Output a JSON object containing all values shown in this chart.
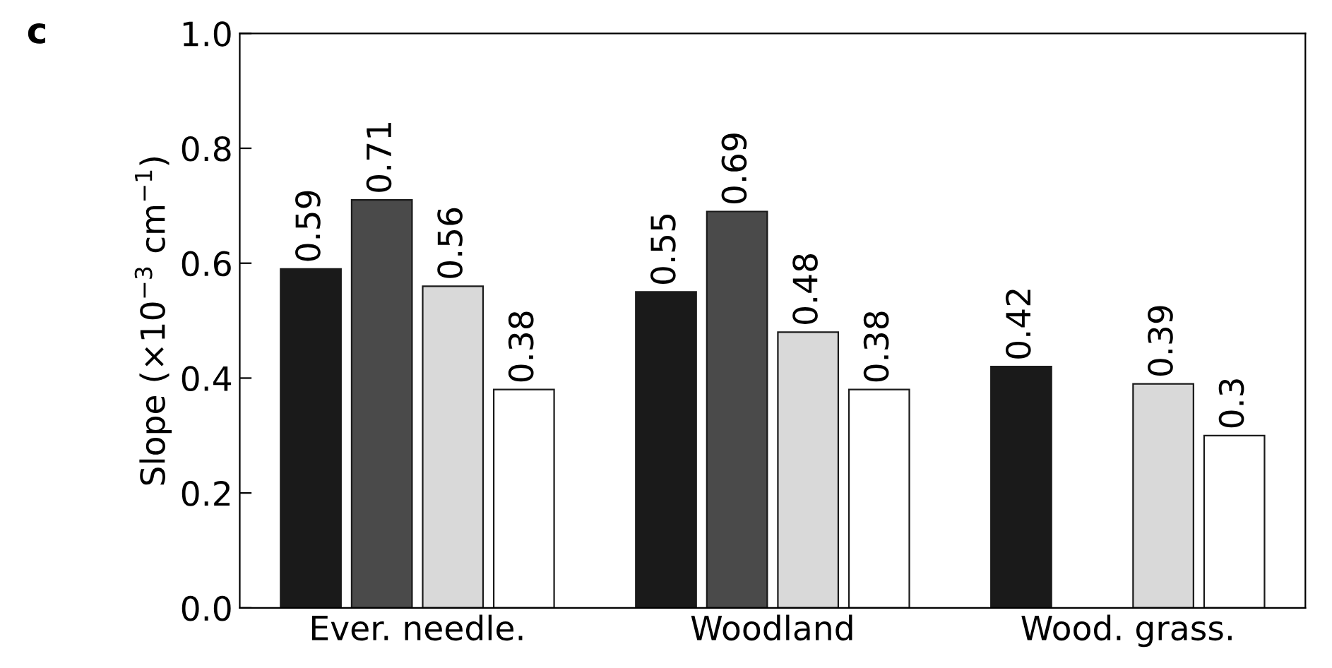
{
  "chart_data": {
    "type": "bar",
    "ylabel": "Slope (×10$^{−3}$ cm$^{−1}$)",
    "annotations": [
      "c"
    ],
    "categories": [
      "Ever. needle.",
      "Woodland",
      "Wood. grass."
    ],
    "series": [
      {
        "color": "#1a1a1a",
        "values": [
          0.59,
          0.55,
          0.42
        ]
      },
      {
        "color": "#4a4a4a",
        "values": [
          0.71,
          0.69,
          null
        ]
      },
      {
        "color": "#d9d9d9",
        "values": [
          0.56,
          0.48,
          0.39
        ]
      },
      {
        "color": "#ffffff",
        "values": [
          0.38,
          0.38,
          0.3
        ]
      }
    ],
    "ylim": [
      0.0,
      1.0
    ],
    "yticks": [
      {
        "value": 0.0,
        "label": "0.0"
      },
      {
        "value": 0.2,
        "label": "0.2"
      },
      {
        "value": 0.4,
        "label": "0.4"
      },
      {
        "value": 0.6,
        "label": "0.6"
      },
      {
        "value": 0.8,
        "label": "0.8"
      },
      {
        "value": 1.0,
        "label": "1.0"
      }
    ],
    "data_labels": true,
    "grid": false,
    "legend": false
  }
}
